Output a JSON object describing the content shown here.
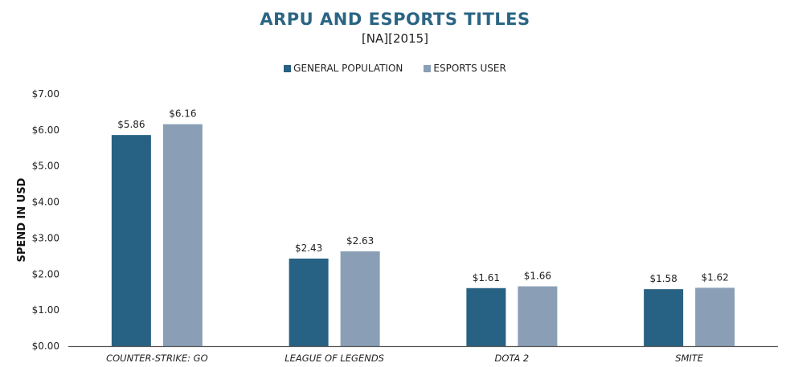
{
  "chart_data": {
    "type": "bar",
    "title": "ARPU AND ESPORTS TITLES",
    "subtitle": "[NA][2015]",
    "xlabel": "",
    "ylabel": "SPEND IN USD",
    "ylim": [
      0,
      7
    ],
    "yticks": [
      "$0.00",
      "$1.00",
      "$2.00",
      "$3.00",
      "$4.00",
      "$5.00",
      "$6.00",
      "$7.00"
    ],
    "grid": false,
    "legend_position": "top",
    "categories": [
      "COUNTER-STRIKE: GO",
      "LEAGUE OF LEGENDS",
      "DOTA 2",
      "SMITE"
    ],
    "series": [
      {
        "name": "GENERAL POPULATION",
        "color": "#276183",
        "values": [
          5.86,
          2.43,
          1.61,
          1.58
        ],
        "labels": [
          "$5.86",
          "$2.43",
          "$1.61",
          "$1.58"
        ]
      },
      {
        "name": "ESPORTS USER",
        "color": "#8a9fb6",
        "values": [
          6.16,
          2.63,
          1.66,
          1.62
        ],
        "labels": [
          "$6.16",
          "$2.63",
          "$1.66",
          "$1.62"
        ]
      }
    ]
  }
}
